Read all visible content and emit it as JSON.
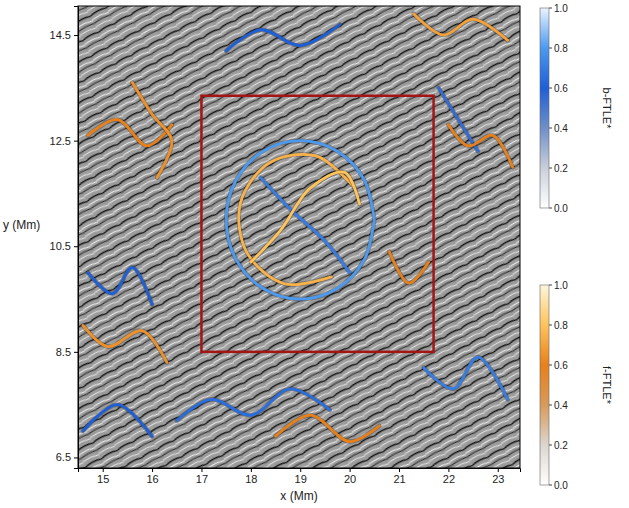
{
  "chart_data": {
    "type": "ftle_ridges",
    "x_label": "x (Mm)",
    "y_label": "y (Mm)",
    "xlim": [
      14.5,
      23.45
    ],
    "ylim": [
      6.3,
      15.05
    ],
    "xticks": [
      15,
      16,
      17,
      18,
      19,
      20,
      21,
      22,
      23
    ],
    "yticks": [
      6.5,
      8.5,
      10.5,
      12.5,
      14.5
    ],
    "region": {
      "x": [
        17.0,
        21.7
      ],
      "y": [
        8.5,
        13.35
      ],
      "color": "#a31515"
    },
    "colorbars": [
      {
        "label": "b-FTLE*",
        "range": [
          0,
          1
        ],
        "ticks": [
          {
            "value": 0,
            "label": "0.0"
          },
          {
            "value": 0.2,
            "label": "0.2"
          },
          {
            "value": 0.4,
            "label": "0.4"
          },
          {
            "value": 0.6,
            "label": "0.6"
          },
          {
            "value": 0.8,
            "label": "0.8"
          },
          {
            "value": 1,
            "label": "1.0"
          }
        ],
        "colors": [
          "#ffffff",
          "#c9cfda",
          "#6f8fc8",
          "#1e5fd8",
          "#4c9af0",
          "#eaf4ff"
        ]
      },
      {
        "label": "f-FTLE*",
        "range": [
          0,
          1
        ],
        "ticks": [
          {
            "value": 0,
            "label": "0.0"
          },
          {
            "value": 0.2,
            "label": "0.2"
          },
          {
            "value": 0.4,
            "label": "0.4"
          },
          {
            "value": 0.6,
            "label": "0.6"
          },
          {
            "value": 0.8,
            "label": "0.8"
          },
          {
            "value": 1,
            "label": "1.0"
          }
        ],
        "colors": [
          "#ffffff",
          "#dcd6cf",
          "#d89a5a",
          "#e8801a",
          "#ffc35a",
          "#fff6dc"
        ]
      }
    ],
    "series": [
      {
        "colorbar": 0,
        "value": 0.8,
        "x": [
          20.5,
          20.3,
          19.75,
          19.0,
          18.25,
          17.7,
          17.5,
          17.7,
          18.25,
          19.0,
          19.75,
          20.3,
          20.5
        ],
        "y": [
          11.0,
          11.75,
          12.3,
          12.5,
          12.3,
          11.75,
          11.0,
          10.25,
          9.7,
          9.5,
          9.7,
          10.25,
          11.0
        ]
      },
      {
        "colorbar": 1,
        "value": 0.75,
        "x": [
          20.08,
          19.32,
          18.38,
          17.79,
          17.92,
          18.68,
          19.63
        ],
        "y": [
          11.63,
          12.21,
          12.08,
          11.32,
          10.38,
          9.79,
          9.92
        ]
      },
      {
        "colorbar": 0,
        "value": 0.7,
        "x": [
          18.2,
          18.8,
          19.5,
          20.0
        ],
        "y": [
          11.8,
          11.2,
          10.6,
          10.0
        ]
      },
      {
        "colorbar": 1,
        "value": 0.8,
        "x": [
          18.0,
          18.6,
          19.2,
          19.9,
          20.2
        ],
        "y": [
          10.2,
          10.8,
          11.6,
          11.9,
          11.3
        ]
      },
      {
        "colorbar": 1,
        "value": 0.6,
        "x": [
          14.7,
          15.3,
          15.9,
          16.4
        ],
        "y": [
          12.6,
          12.9,
          12.4,
          12.8
        ]
      },
      {
        "colorbar": 1,
        "value": 0.65,
        "x": [
          15.6,
          16.0,
          16.4,
          16.1
        ],
        "y": [
          13.6,
          13.0,
          12.5,
          11.8
        ]
      },
      {
        "colorbar": 0,
        "value": 0.6,
        "x": [
          17.5,
          18.2,
          19.0,
          19.8
        ],
        "y": [
          14.2,
          14.6,
          14.3,
          14.7
        ]
      },
      {
        "colorbar": 1,
        "value": 0.7,
        "x": [
          21.3,
          21.9,
          22.5,
          23.2
        ],
        "y": [
          14.9,
          14.5,
          14.8,
          14.4
        ]
      },
      {
        "colorbar": 0,
        "value": 0.55,
        "x": [
          21.8,
          22.2,
          22.6
        ],
        "y": [
          13.5,
          12.9,
          12.3
        ]
      },
      {
        "colorbar": 1,
        "value": 0.6,
        "x": [
          22.0,
          22.4,
          22.9,
          23.3
        ],
        "y": [
          12.8,
          12.4,
          12.6,
          12.0
        ]
      },
      {
        "colorbar": 0,
        "value": 0.6,
        "x": [
          14.7,
          15.2,
          15.6,
          16.0
        ],
        "y": [
          10.0,
          9.6,
          10.1,
          9.4
        ]
      },
      {
        "colorbar": 1,
        "value": 0.65,
        "x": [
          14.6,
          15.1,
          15.8,
          16.3
        ],
        "y": [
          9.0,
          8.6,
          8.9,
          8.3
        ]
      },
      {
        "colorbar": 0,
        "value": 0.65,
        "x": [
          16.5,
          17.2,
          18.0,
          18.8,
          19.6
        ],
        "y": [
          7.2,
          7.6,
          7.3,
          7.8,
          7.4
        ]
      },
      {
        "colorbar": 1,
        "value": 0.6,
        "x": [
          18.5,
          19.2,
          20.0,
          20.6
        ],
        "y": [
          6.9,
          7.3,
          6.8,
          7.1
        ]
      },
      {
        "colorbar": 0,
        "value": 0.7,
        "x": [
          21.5,
          22.1,
          22.6,
          23.2
        ],
        "y": [
          8.2,
          7.8,
          8.4,
          7.6
        ]
      },
      {
        "colorbar": 1,
        "value": 0.6,
        "x": [
          20.8,
          21.2,
          21.6
        ],
        "y": [
          10.4,
          9.8,
          10.2
        ]
      },
      {
        "colorbar": 0,
        "value": 0.6,
        "x": [
          14.6,
          15.3,
          16.0
        ],
        "y": [
          7.0,
          7.5,
          6.9
        ]
      }
    ]
  }
}
